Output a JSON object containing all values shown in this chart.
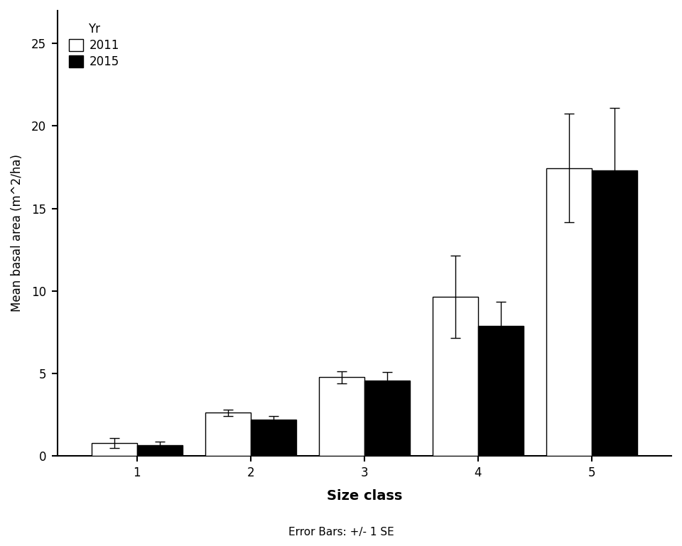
{
  "categories": [
    "1",
    "2",
    "3",
    "4",
    "5"
  ],
  "values_2011": [
    0.75,
    2.6,
    4.75,
    9.65,
    17.45
  ],
  "values_2015": [
    0.65,
    2.2,
    4.55,
    7.85,
    17.3
  ],
  "errors_2011": [
    0.3,
    0.2,
    0.35,
    2.5,
    3.3
  ],
  "errors_2015": [
    0.2,
    0.2,
    0.5,
    1.5,
    3.8
  ],
  "bar_width": 0.4,
  "xlabel": "Size class",
  "ylabel": "Mean basal area (m^2/ha)",
  "ylim": [
    0,
    27
  ],
  "yticks": [
    0,
    5,
    10,
    15,
    20,
    25
  ],
  "legend_title": "Yr",
  "legend_labels": [
    "2011",
    "2015"
  ],
  "color_2011": "#ffffff",
  "color_2015": "#000000",
  "edgecolor": "#000000",
  "annotation": "Error Bars: +/- 1 SE",
  "capsize": 5,
  "bar_linewidth": 1.0,
  "elinewidth": 1.0
}
